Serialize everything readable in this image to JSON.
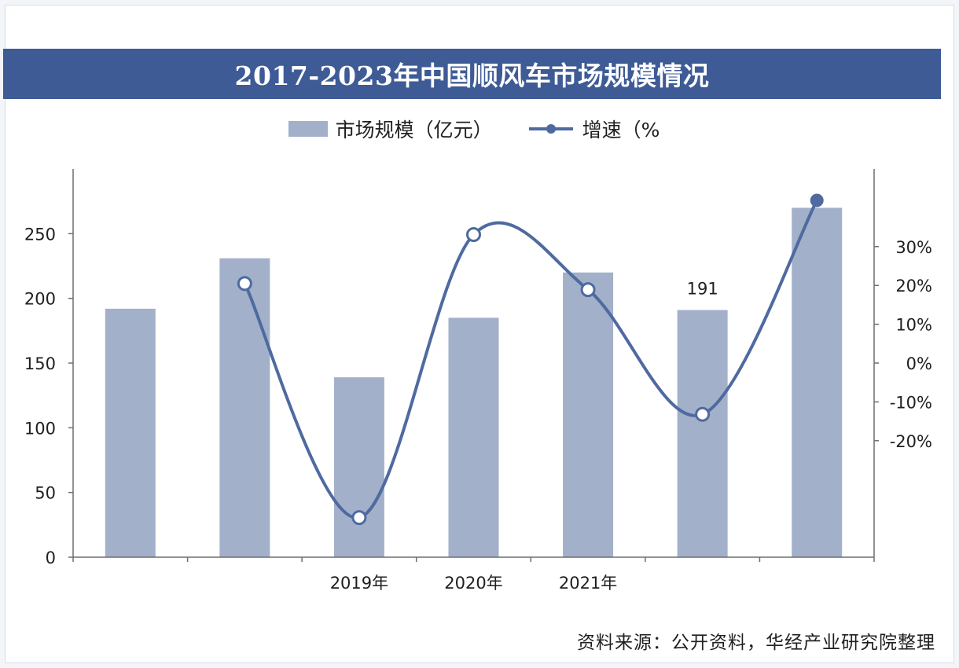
{
  "title": "2017-2023年中国顺风车市场规模情况",
  "legend": {
    "bar_label": "市场规模（亿元）",
    "line_label": "增速（%"
  },
  "source": "资料来源：公开资料，华经产业研究院整理",
  "colors": {
    "title_bg": "#3e5b96",
    "bar": "#a3b0ca",
    "line": "#4f6aa0",
    "axis": "#6e6e6e"
  },
  "chart_data": {
    "type": "bar",
    "title": "2017-2023年中国顺风车市场规模情况",
    "categories": [
      "",
      "",
      "2019年",
      "2020年",
      "2021年",
      "",
      ""
    ],
    "series": [
      {
        "name": "市场规模（亿元）",
        "type": "bar",
        "axis": "left",
        "values": [
          192,
          231,
          139,
          185,
          220,
          191,
          270
        ]
      },
      {
        "name": "增速（%",
        "type": "line",
        "axis": "right",
        "values": [
          null,
          20.5,
          -39.8,
          33.1,
          18.9,
          -13.2,
          41.9
        ]
      }
    ],
    "data_labels": [
      {
        "index": 5,
        "text": "191"
      }
    ],
    "left_axis": {
      "ylim": [
        0,
        300
      ],
      "ticks": [
        0,
        50,
        100,
        150,
        200,
        250
      ],
      "tick_labels": [
        "0",
        "50",
        "100",
        "150",
        "200",
        "250"
      ]
    },
    "right_axis": {
      "ylim": [
        -50,
        50
      ],
      "ticks": [
        -20,
        -10,
        0,
        10,
        20,
        30
      ],
      "tick_labels": [
        "-20%",
        "-10%",
        "0%",
        "10%",
        "20%",
        "30%"
      ]
    },
    "legend_position": "top-center",
    "grid": false
  }
}
